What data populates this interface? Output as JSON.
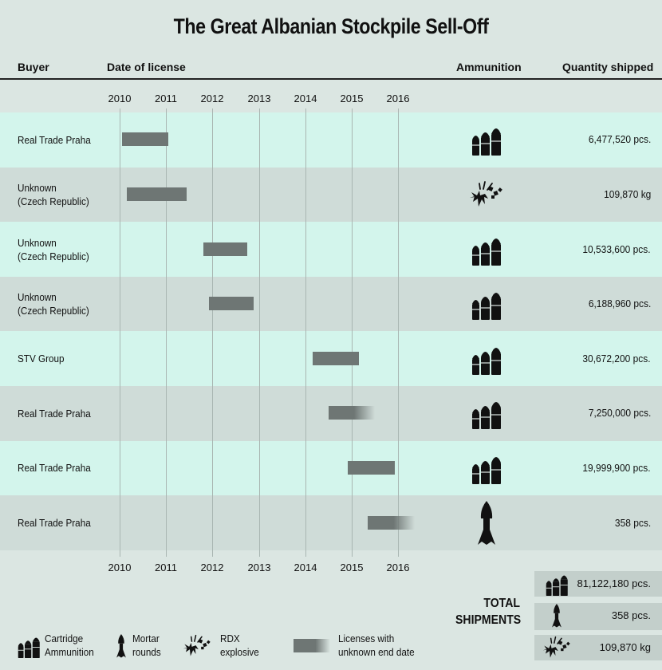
{
  "title": "The Great Albanian Stockpile Sell-Off",
  "headers": {
    "buyer": "Buyer",
    "date": "Date of license",
    "ammo": "Ammunition",
    "quantity": "Quantity shipped"
  },
  "colors": {
    "row_light": "#d3f5ec",
    "row_dark": "#cfdcd8",
    "bar": "#6e7674",
    "background": "#dbe6e2",
    "total_box": "#c3cfcb"
  },
  "chart_data": {
    "type": "bar",
    "subtype": "gantt",
    "title": "The Great Albanian Stockpile Sell-Off",
    "xlabel": "Date of license",
    "xlim": [
      2010,
      2016
    ],
    "x_ticks": [
      "2010",
      "2011",
      "2012",
      "2013",
      "2014",
      "2015",
      "2016"
    ],
    "rows": [
      {
        "buyer": "Real Trade Praha",
        "start": 2010.05,
        "end": 2011.05,
        "fade": false,
        "ammo": "cartridge-icon",
        "quantity": "6,477,520 pcs."
      },
      {
        "buyer": "Unknown\n(Czech Republic)",
        "start": 2010.15,
        "end": 2011.45,
        "fade": false,
        "ammo": "rdx-explosive-icon",
        "quantity": "109,870 kg"
      },
      {
        "buyer": "Unknown\n(Czech Republic)",
        "start": 2011.8,
        "end": 2012.75,
        "fade": false,
        "ammo": "cartridge-icon",
        "quantity": "10,533,600 pcs."
      },
      {
        "buyer": "Unknown\n(Czech Republic)",
        "start": 2011.92,
        "end": 2012.88,
        "fade": false,
        "ammo": "cartridge-icon",
        "quantity": "6,188,960 pcs."
      },
      {
        "buyer": "STV Group",
        "start": 2014.15,
        "end": 2015.15,
        "fade": false,
        "ammo": "cartridge-icon",
        "quantity": "30,672,200 pcs."
      },
      {
        "buyer": "Real Trade Praha",
        "start": 2014.5,
        "end": 2015.5,
        "fade": true,
        "ammo": "cartridge-icon",
        "quantity": "7,250,000 pcs."
      },
      {
        "buyer": "Real Trade Praha",
        "start": 2014.92,
        "end": 2015.92,
        "fade": false,
        "ammo": "cartridge-icon",
        "quantity": "19,999,900 pcs."
      },
      {
        "buyer": "Real Trade Praha",
        "start": 2015.35,
        "end": 2016.35,
        "fade": true,
        "ammo": "mortar-round-icon",
        "quantity": "358 pcs."
      }
    ]
  },
  "totals": {
    "label_line1": "TOTAL",
    "label_line2": "SHIPMENTS",
    "items": [
      {
        "icon": "cartridge-icon",
        "value": "81,122,180 pcs."
      },
      {
        "icon": "mortar-round-icon",
        "value": "358 pcs."
      },
      {
        "icon": "rdx-explosive-icon",
        "value": "109,870 kg"
      }
    ]
  },
  "legend": [
    {
      "icon": "cartridge-icon",
      "line1": "Cartridge",
      "line2": "Ammunition"
    },
    {
      "icon": "mortar-round-icon",
      "line1": "Mortar",
      "line2": "rounds"
    },
    {
      "icon": "rdx-explosive-icon",
      "line1": "RDX",
      "line2": "explosive"
    },
    {
      "icon": "license-bar-icon",
      "line1": "Licenses with",
      "line2": "unknown end date"
    }
  ]
}
